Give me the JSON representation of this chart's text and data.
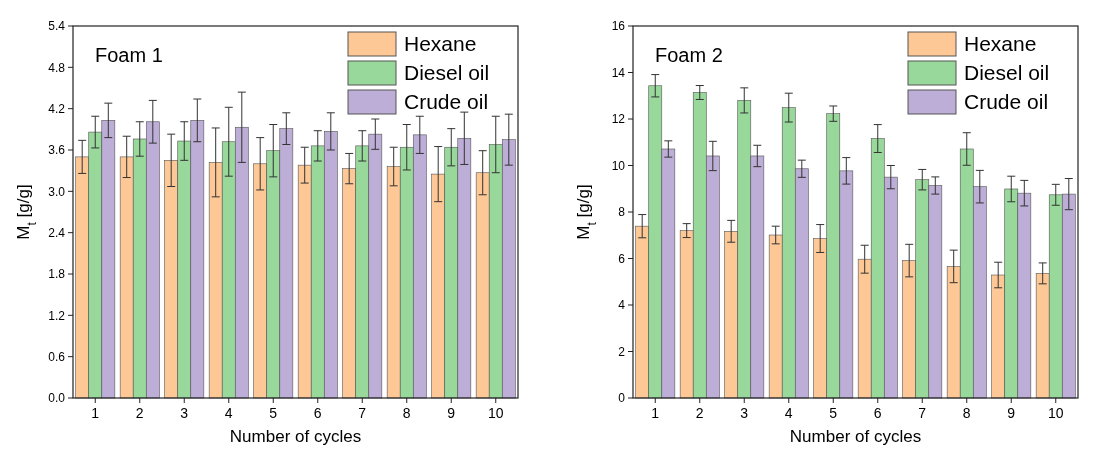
{
  "chart_data": [
    {
      "type": "bar",
      "title": "Foam 1",
      "xlabel": "Number of cycles",
      "ylabel": "M$_{t}$ [g/g]",
      "categories": [
        "1",
        "2",
        "3",
        "4",
        "5",
        "6",
        "7",
        "8",
        "9",
        "10"
      ],
      "ylim": [
        0,
        5.4
      ],
      "yticks": [
        {
          "value": 0,
          "label": "0.0"
        },
        0.6,
        1.2,
        1.8,
        2.4,
        {
          "value": 3,
          "label": "3.0"
        },
        3.6,
        4.2,
        4.8,
        5.4
      ],
      "legend": "top right",
      "grid": false,
      "series": [
        {
          "name": "Hexane",
          "color": "#fdc896",
          "values": [
            3.5,
            3.5,
            3.45,
            3.42,
            3.4,
            3.38,
            3.33,
            3.36,
            3.25,
            3.27
          ],
          "errors": [
            0.24,
            0.3,
            0.38,
            0.5,
            0.38,
            0.26,
            0.22,
            0.28,
            0.4,
            0.32
          ]
        },
        {
          "name": "Diesel oil",
          "color": "#98d89a",
          "values": [
            3.86,
            3.76,
            3.73,
            3.72,
            3.59,
            3.66,
            3.66,
            3.64,
            3.64,
            3.68
          ],
          "errors": [
            0.23,
            0.25,
            0.28,
            0.5,
            0.38,
            0.22,
            0.22,
            0.33,
            0.27,
            0.41
          ]
        },
        {
          "name": "Crude oil",
          "color": "#bcaed6",
          "values": [
            4.03,
            4.01,
            4.03,
            3.93,
            3.91,
            3.87,
            3.83,
            3.82,
            3.77,
            3.75
          ],
          "errors": [
            0.25,
            0.31,
            0.31,
            0.51,
            0.23,
            0.27,
            0.22,
            0.27,
            0.38,
            0.37
          ]
        }
      ]
    },
    {
      "type": "bar",
      "title": "Foam 2",
      "xlabel": "Number of cycles",
      "ylabel": "M$_{t}$ [g/g]",
      "categories": [
        "1",
        "2",
        "3",
        "4",
        "5",
        "6",
        "7",
        "8",
        "9",
        "10"
      ],
      "ylim": [
        0,
        16
      ],
      "yticks": [
        0,
        2,
        4,
        6,
        8,
        10,
        12,
        14,
        16
      ],
      "legend": "top right",
      "grid": false,
      "series": [
        {
          "name": "Hexane",
          "color": "#fdc896",
          "values": [
            7.39,
            7.2,
            7.17,
            7.01,
            6.86,
            5.97,
            5.91,
            5.66,
            5.29,
            5.36
          ],
          "errors": [
            0.5,
            0.3,
            0.47,
            0.38,
            0.6,
            0.6,
            0.7,
            0.7,
            0.55,
            0.45
          ]
        },
        {
          "name": "Diesel oil",
          "color": "#98d89a",
          "values": [
            13.43,
            13.14,
            12.8,
            12.49,
            12.23,
            11.16,
            9.39,
            10.71,
            8.99,
            8.74
          ],
          "errors": [
            0.48,
            0.3,
            0.54,
            0.62,
            0.33,
            0.6,
            0.44,
            0.7,
            0.55,
            0.45
          ]
        },
        {
          "name": "Crude oil",
          "color": "#bcaed6",
          "values": [
            10.71,
            10.41,
            10.41,
            9.86,
            9.77,
            9.5,
            9.14,
            9.09,
            8.81,
            8.77
          ],
          "errors": [
            0.35,
            0.63,
            0.46,
            0.37,
            0.57,
            0.5,
            0.37,
            0.7,
            0.55,
            0.67
          ]
        }
      ]
    }
  ]
}
